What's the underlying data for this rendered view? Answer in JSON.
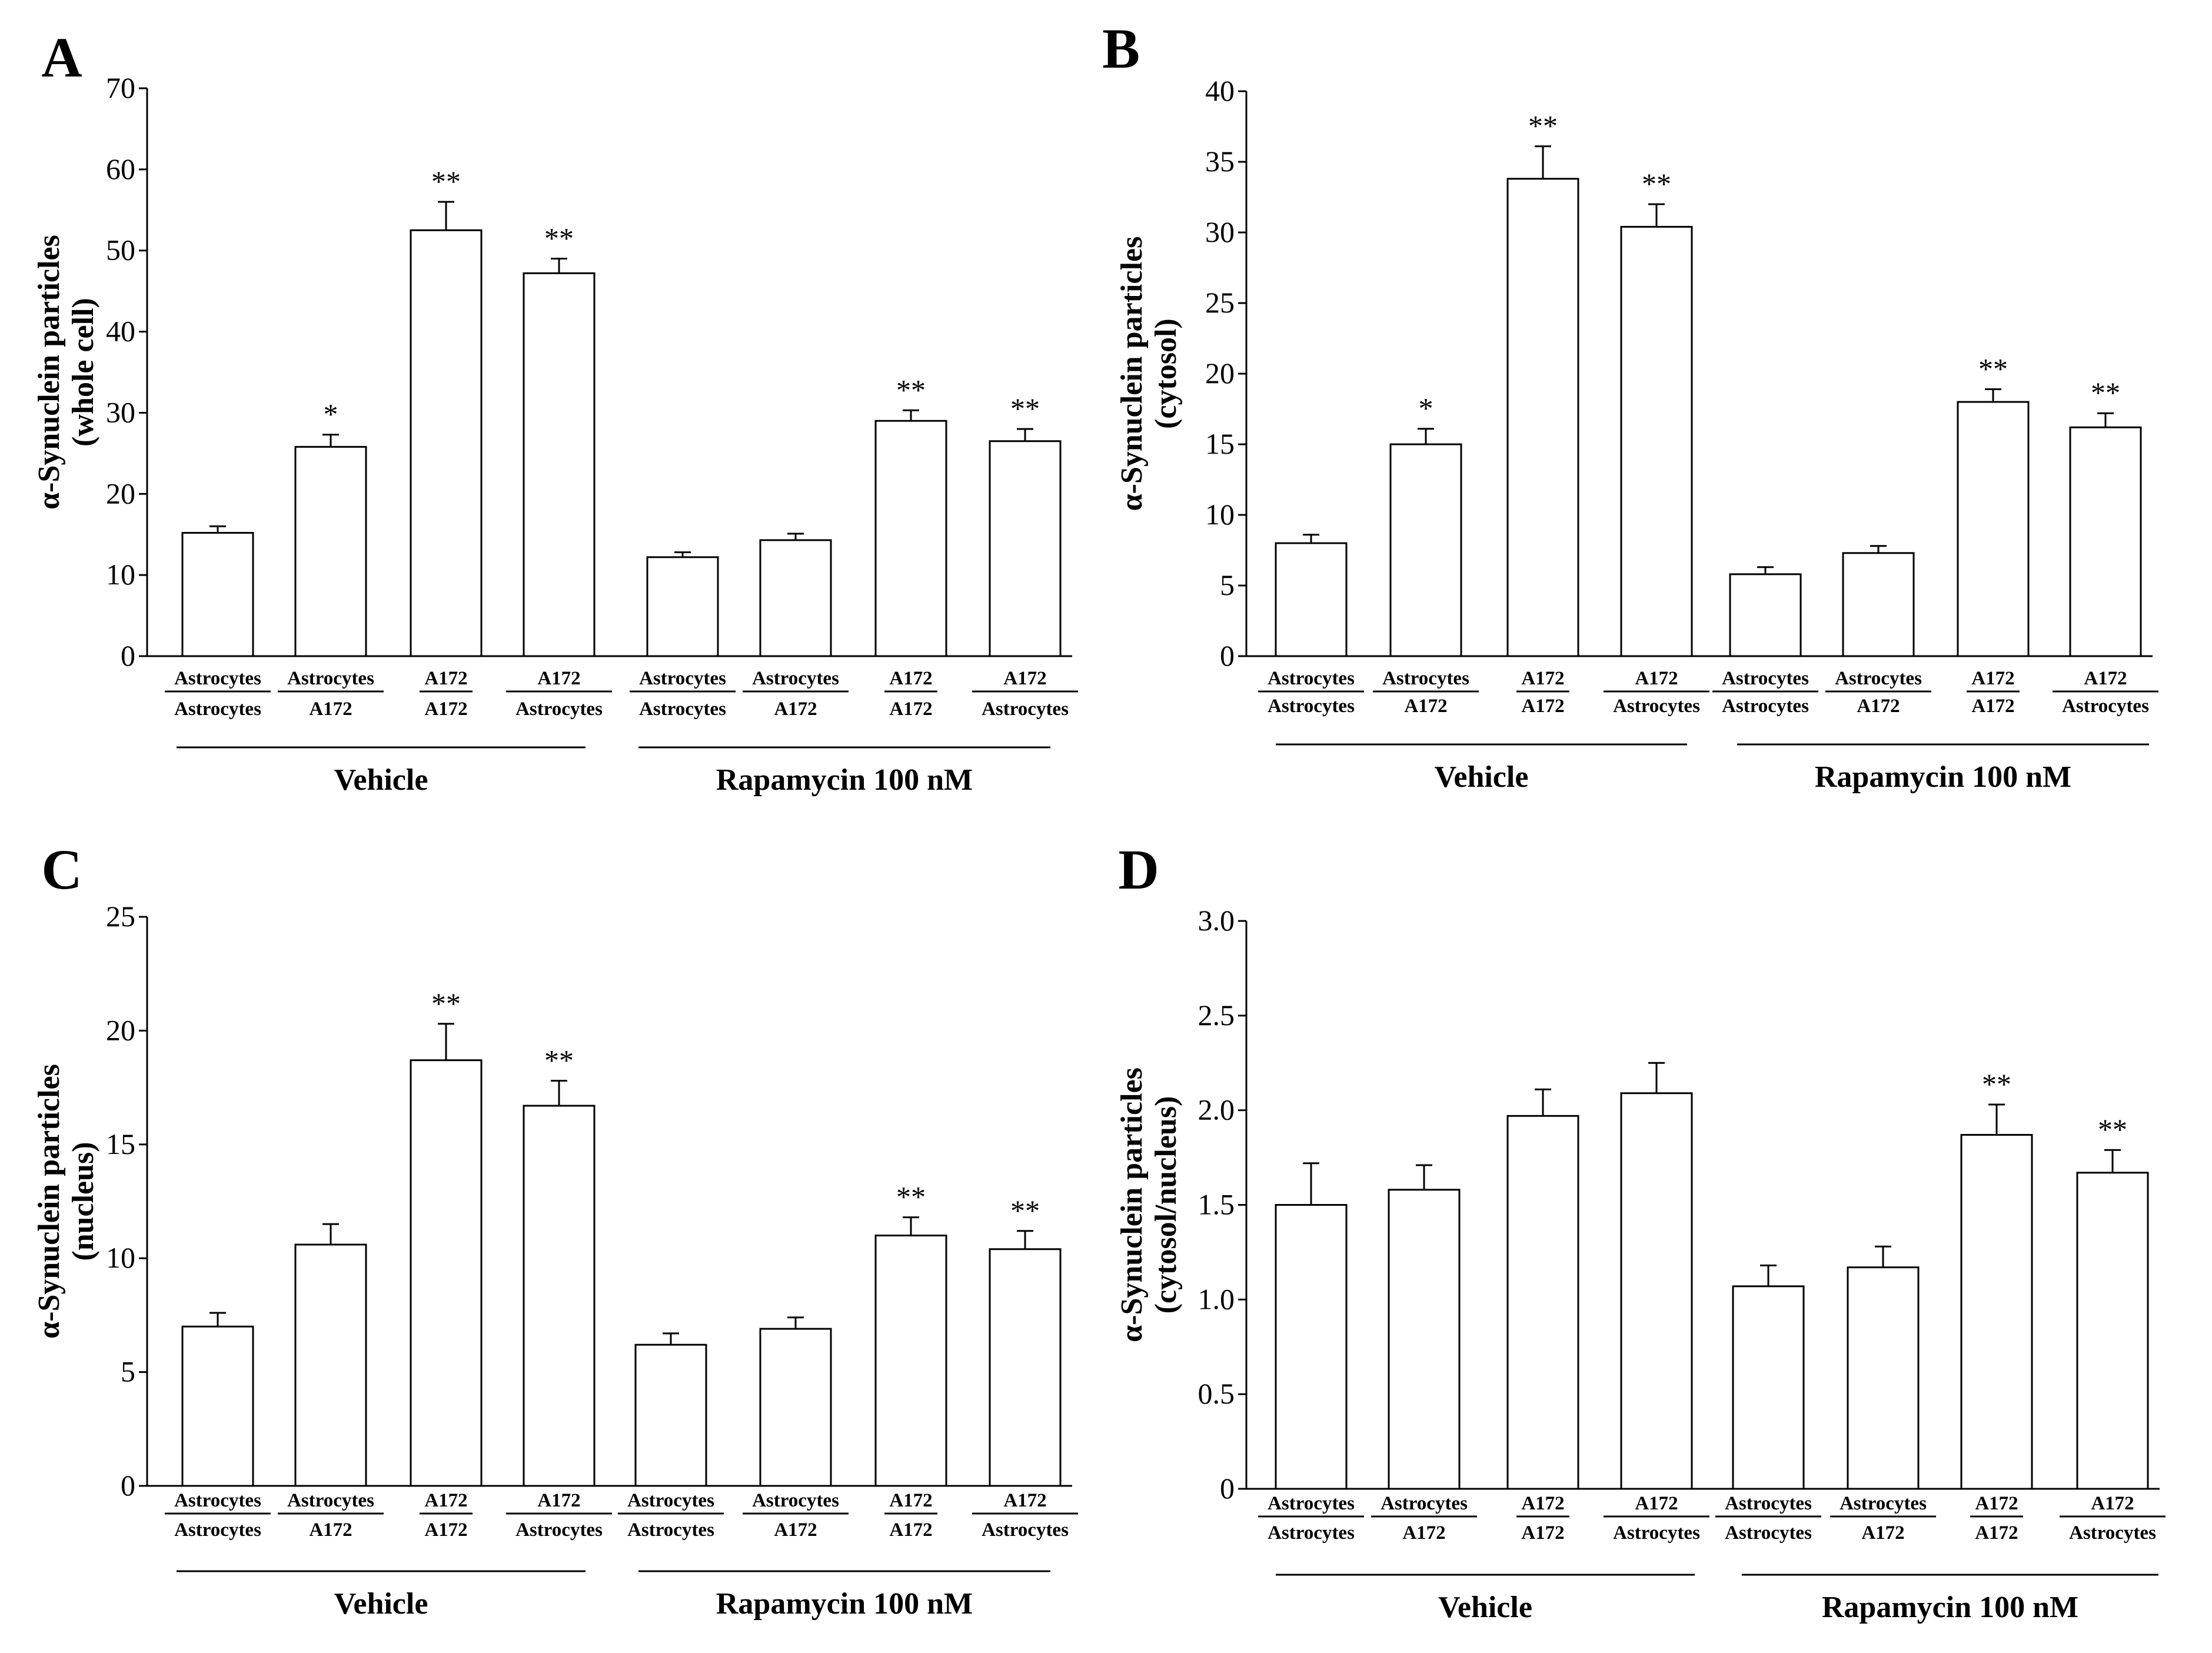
{
  "conditions": [
    {
      "top": "Astrocytes",
      "bottom": "Astrocytes"
    },
    {
      "top": "Astrocytes",
      "bottom": "A172"
    },
    {
      "top": "A172",
      "bottom": "A172"
    },
    {
      "top": "A172",
      "bottom": "Astrocytes"
    },
    {
      "top": "Astrocytes",
      "bottom": "Astrocytes"
    },
    {
      "top": "Astrocytes",
      "bottom": "A172"
    },
    {
      "top": "A172",
      "bottom": "A172"
    },
    {
      "top": "A172",
      "bottom": "Astrocytes"
    }
  ],
  "groups": [
    "Vehicle",
    "Rapamycin 100 nM"
  ],
  "chart_data": [
    {
      "type": "bar",
      "panel": "A",
      "ylabel": [
        "α-Synuclein particles",
        "(whole cell)"
      ],
      "ylim": [
        0,
        70
      ],
      "yticks": [
        "0",
        "10",
        "20",
        "30",
        "40",
        "50",
        "60",
        "70"
      ],
      "ytick_values": [
        0,
        10,
        20,
        30,
        40,
        50,
        60,
        70
      ],
      "values": [
        15.2,
        25.8,
        52.5,
        47.2,
        12.2,
        14.3,
        29.0,
        26.5
      ],
      "errors": [
        0.8,
        1.5,
        3.5,
        1.8,
        0.6,
        0.8,
        1.3,
        1.5
      ],
      "significance": [
        "",
        "*",
        "**",
        "**",
        "",
        "",
        "**",
        "**"
      ]
    },
    {
      "type": "bar",
      "panel": "B",
      "ylabel": [
        "α-Synuclein particles",
        "(cytosol)"
      ],
      "ylim": [
        0,
        40
      ],
      "yticks": [
        "0",
        "5",
        "10",
        "15",
        "20",
        "25",
        "30",
        "35",
        "40"
      ],
      "ytick_values": [
        0,
        5,
        10,
        15,
        20,
        25,
        30,
        35,
        40
      ],
      "values": [
        8.0,
        15.0,
        33.8,
        30.4,
        5.8,
        7.3,
        18.0,
        16.2
      ],
      "errors": [
        0.6,
        1.1,
        2.3,
        1.6,
        0.5,
        0.5,
        0.9,
        1.0
      ],
      "significance": [
        "",
        "*",
        "**",
        "**",
        "",
        "",
        "**",
        "**"
      ]
    },
    {
      "type": "bar",
      "panel": "C",
      "ylabel": [
        "α-Synuclein particles",
        "(nucleus)"
      ],
      "ylim": [
        0,
        25
      ],
      "yticks": [
        "0",
        "5",
        "10",
        "15",
        "20",
        "25"
      ],
      "ytick_values": [
        0,
        5,
        10,
        15,
        20,
        25
      ],
      "values": [
        7.0,
        10.6,
        18.7,
        16.7,
        6.2,
        6.9,
        11.0,
        10.4
      ],
      "errors": [
        0.6,
        0.9,
        1.6,
        1.1,
        0.5,
        0.5,
        0.8,
        0.8
      ],
      "significance": [
        "",
        "",
        "**",
        "**",
        "",
        "",
        "**",
        "**"
      ]
    },
    {
      "type": "bar",
      "panel": "D",
      "ylabel": [
        "α-Synuclein particles",
        "(cytosol/nucleus)"
      ],
      "ylim": [
        0,
        3.0
      ],
      "yticks": [
        "0",
        "0.5",
        "1.0",
        "1.5",
        "2.0",
        "2.5",
        "3.0"
      ],
      "ytick_values": [
        0,
        0.5,
        1.0,
        1.5,
        2.0,
        2.5,
        3.0
      ],
      "values": [
        1.5,
        1.58,
        1.97,
        2.09,
        1.07,
        1.17,
        1.87,
        1.67
      ],
      "errors": [
        0.22,
        0.13,
        0.14,
        0.16,
        0.11,
        0.11,
        0.16,
        0.12
      ],
      "significance": [
        "",
        "",
        "",
        "",
        "",
        "",
        "**",
        "**"
      ]
    }
  ]
}
